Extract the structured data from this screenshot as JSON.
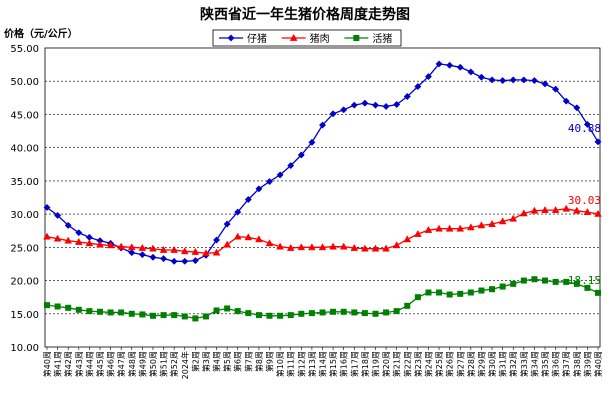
{
  "chart_data": {
    "type": "line",
    "title": "陕西省近一年生猪价格周度走势图",
    "ylabel": "价格（元/公斤）",
    "xlabel": "",
    "ylim": [
      10,
      55
    ],
    "yticks": [
      "10.00",
      "15.00",
      "20.00",
      "25.00",
      "30.00",
      "35.00",
      "40.00",
      "45.00",
      "50.00",
      "55.00"
    ],
    "grid": "horizontal",
    "legend": "top-center",
    "categories": [
      "第40周",
      "第41周",
      "第42周",
      "第43周",
      "第44周",
      "第45周",
      "第46周",
      "第47周",
      "第48周",
      "第49周",
      "第50周",
      "第51周",
      "第52周",
      "2024年",
      "第2周",
      "第3周",
      "第4周",
      "第5周",
      "第6周",
      "第7周",
      "第8周",
      "第9周",
      "第10周",
      "第11周",
      "第12周",
      "第13周",
      "第14周",
      "第15周",
      "第16周",
      "第17周",
      "第18周",
      "第19周",
      "第20周",
      "第21周",
      "第22周",
      "第23周",
      "第24周",
      "第25周",
      "第26周",
      "第27周",
      "第28周",
      "第29周",
      "第30周",
      "第31周",
      "第32周",
      "第33周",
      "第34周",
      "第35周",
      "第36周",
      "第37周",
      "第38周",
      "第39周",
      "第40周"
    ],
    "series": [
      {
        "name": "仔猪",
        "color": "#0000CC",
        "marker": "diamond",
        "end_label": "40.88",
        "values": [
          31.0,
          29.8,
          28.3,
          27.2,
          26.5,
          26.0,
          25.6,
          24.9,
          24.2,
          23.9,
          23.5,
          23.3,
          22.9,
          22.9,
          23.0,
          23.8,
          26.1,
          28.5,
          30.3,
          32.2,
          33.8,
          34.9,
          35.9,
          37.3,
          38.9,
          40.8,
          43.4,
          45.1,
          45.7,
          46.4,
          46.7,
          46.4,
          46.2,
          46.5,
          47.7,
          49.2,
          50.7,
          52.6,
          52.4,
          52.1,
          51.4,
          50.6,
          50.2,
          50.1,
          50.2,
          50.2,
          50.1,
          49.6,
          48.8,
          47.0,
          46.0,
          43.5,
          40.88
        ]
      },
      {
        "name": "猪肉",
        "color": "#FF0000",
        "marker": "triangle",
        "end_label": "30.03",
        "values": [
          26.6,
          26.3,
          26.0,
          25.8,
          25.6,
          25.4,
          25.3,
          25.1,
          25.0,
          24.9,
          24.8,
          24.6,
          24.6,
          24.4,
          24.3,
          24.1,
          24.2,
          25.4,
          26.6,
          26.5,
          26.2,
          25.6,
          25.1,
          24.9,
          25.0,
          25.0,
          25.0,
          25.1,
          25.1,
          24.9,
          24.8,
          24.8,
          24.8,
          25.3,
          26.2,
          27.0,
          27.6,
          27.8,
          27.8,
          27.8,
          28.0,
          28.3,
          28.5,
          28.9,
          29.3,
          30.1,
          30.5,
          30.6,
          30.6,
          30.8,
          30.5,
          30.3,
          30.03
        ]
      },
      {
        "name": "活猪",
        "color": "#008000",
        "marker": "square",
        "end_label": "18.15",
        "values": [
          16.3,
          16.1,
          15.9,
          15.6,
          15.4,
          15.3,
          15.2,
          15.2,
          15.0,
          14.9,
          14.7,
          14.8,
          14.8,
          14.6,
          14.3,
          14.6,
          15.5,
          15.8,
          15.4,
          15.1,
          14.8,
          14.7,
          14.7,
          14.8,
          15.0,
          15.1,
          15.2,
          15.3,
          15.3,
          15.2,
          15.1,
          15.0,
          15.2,
          15.4,
          16.2,
          17.5,
          18.2,
          18.2,
          17.9,
          18.0,
          18.2,
          18.5,
          18.7,
          19.1,
          19.5,
          20.0,
          20.2,
          20.0,
          19.8,
          19.8,
          19.5,
          18.9,
          18.15
        ]
      }
    ]
  }
}
